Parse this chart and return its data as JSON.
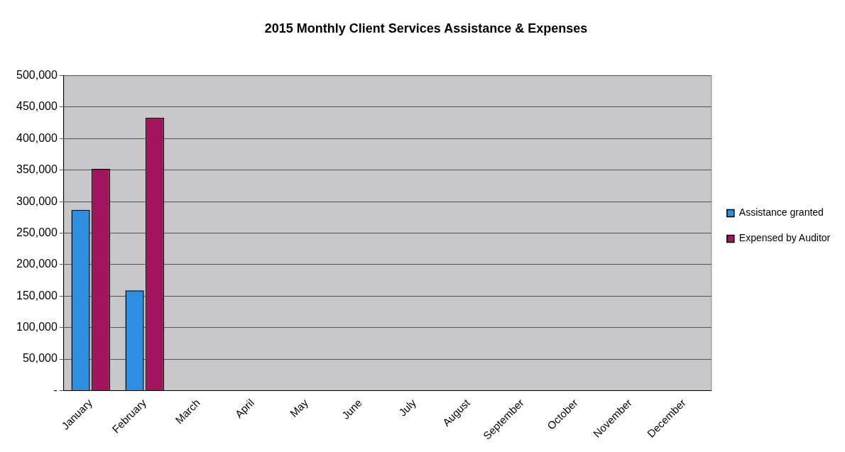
{
  "chart_data": {
    "type": "bar",
    "title": "2015 Monthly Client Services Assistance & Expenses",
    "categories": [
      "January",
      "February",
      "March",
      "April",
      "May",
      "June",
      "July",
      "August",
      "September",
      "October",
      "November",
      "December"
    ],
    "series": [
      {
        "name": "Assistance granted",
        "color": "#2e8fe0",
        "values": [
          287000,
          159000,
          null,
          null,
          null,
          null,
          null,
          null,
          null,
          null,
          null,
          null
        ]
      },
      {
        "name": "Expensed by Auditor",
        "color": "#a3145e",
        "values": [
          352000,
          433000,
          null,
          null,
          null,
          null,
          null,
          null,
          null,
          null,
          null,
          null
        ]
      }
    ],
    "ylim": [
      0,
      500000
    ],
    "yticks": [
      {
        "value": 0,
        "label": "-"
      },
      {
        "value": 50000,
        "label": "50,000"
      },
      {
        "value": 100000,
        "label": "100,000"
      },
      {
        "value": 150000,
        "label": "150,000"
      },
      {
        "value": 200000,
        "label": "200,000"
      },
      {
        "value": 250000,
        "label": "250,000"
      },
      {
        "value": 300000,
        "label": "300,000"
      },
      {
        "value": 350000,
        "label": "350,000"
      },
      {
        "value": 400000,
        "label": "400,000"
      },
      {
        "value": 450000,
        "label": "450,000"
      },
      {
        "value": 500000,
        "label": "500,000"
      }
    ],
    "grid": "y",
    "legend": "right"
  }
}
